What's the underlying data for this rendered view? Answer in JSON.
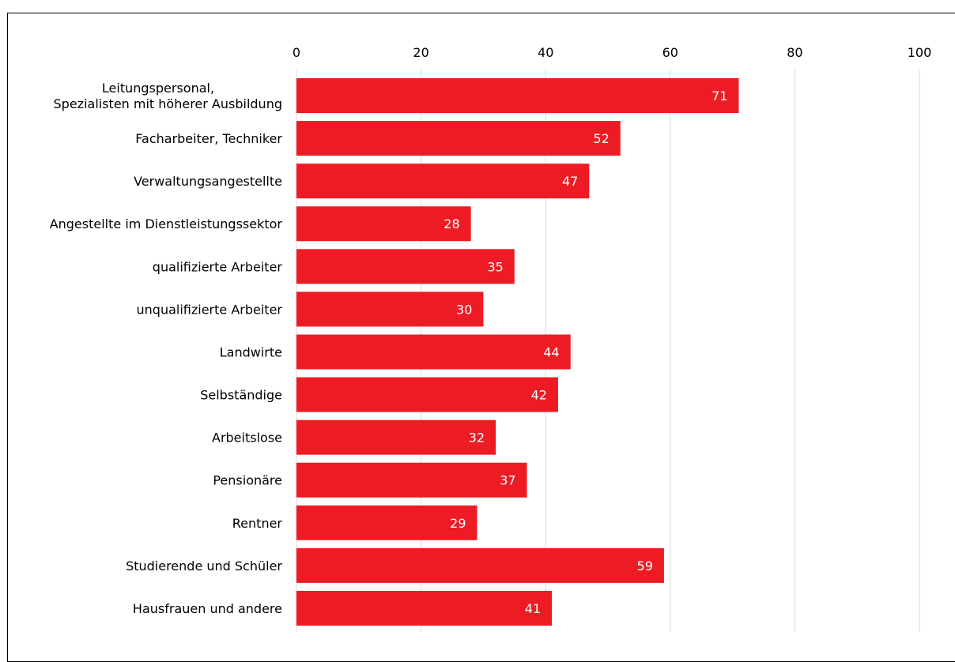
{
  "chart_data": {
    "type": "bar",
    "orientation": "horizontal",
    "categories": [
      [
        "Leitungspersonal,",
        "Spezialisten mit höherer Ausbildung"
      ],
      [
        "Facharbeiter, Techniker"
      ],
      [
        "Verwaltungsangestellte"
      ],
      [
        "Angestellte im Dienstleistungssektor"
      ],
      [
        "qualifizierte Arbeiter"
      ],
      [
        "unqualifizierte Arbeiter"
      ],
      [
        "Landwirte"
      ],
      [
        "Selbständige"
      ],
      [
        "Arbeitslose"
      ],
      [
        "Pensionäre"
      ],
      [
        "Rentner"
      ],
      [
        "Studierende und Schüler"
      ],
      [
        "Hausfrauen und andere"
      ]
    ],
    "values": [
      71,
      52,
      47,
      28,
      35,
      30,
      44,
      42,
      32,
      37,
      29,
      59,
      41
    ],
    "xlim": [
      0,
      100
    ],
    "xticks": [
      0,
      20,
      40,
      60,
      80,
      100
    ],
    "axis_position": "top",
    "grid": true,
    "bar_color": "#ed1c24",
    "grid_color": "#d9d9d9"
  }
}
